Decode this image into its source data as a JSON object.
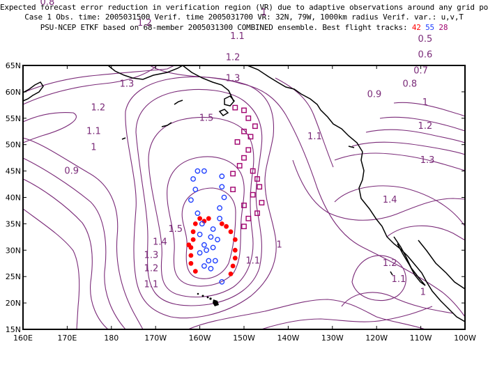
{
  "title": {
    "line1": "Expected forecast error reduction in verification region (VR) due to adaptive observations around any grid point.",
    "line2": "Case 1  Obs. time: 2005031500  Verif. time 2005031700  VR: 32N, 79W, 1000km radius  Verif. var.: u,v,T",
    "line3_prefix": "PSU-NCEP ETKF based on 68-member 2005031300 COMBINED ensemble.  Best flight tracks:",
    "track_labels": [
      "42",
      "55",
      "28"
    ]
  },
  "axes": {
    "lat_labels": [
      "65N",
      "60N",
      "55N",
      "50N",
      "45N",
      "40N",
      "35N",
      "30N",
      "25N",
      "20N",
      "15N"
    ],
    "lon_labels": [
      "160E",
      "170E",
      "180",
      "170W",
      "160W",
      "150W",
      "140W",
      "130W",
      "120W",
      "110W",
      "100W"
    ]
  },
  "contour_labels": [
    {
      "text": "0.8",
      "lon": 165.5,
      "lat": 61.5
    },
    {
      "text": "1.1",
      "lon": 187.5,
      "lat": 63.0
    },
    {
      "text": "1.2",
      "lon": 187.5,
      "lat": 57.5
    },
    {
      "text": "1",
      "lon": 214.5,
      "lat": 59.5
    },
    {
      "text": "1.1",
      "lon": 208.5,
      "lat": 55.0
    },
    {
      "text": "1.2",
      "lon": 207.5,
      "lat": 51.0
    },
    {
      "text": "1.3",
      "lon": 207.5,
      "lat": 47.0
    },
    {
      "text": "1.3",
      "lon": 183.5,
      "lat": 46.0
    },
    {
      "text": "1.2",
      "lon": 177.0,
      "lat": 41.5
    },
    {
      "text": "1.1",
      "lon": 176.0,
      "lat": 37.0
    },
    {
      "text": "1",
      "lon": 176.0,
      "lat": 34.0
    },
    {
      "text": "0.9",
      "lon": 171.0,
      "lat": 29.5
    },
    {
      "text": "1.5",
      "lon": 201.5,
      "lat": 39.5
    },
    {
      "text": "0.5",
      "lon": 251.0,
      "lat": 54.5
    },
    {
      "text": "0.6",
      "lon": 251.0,
      "lat": 51.5
    },
    {
      "text": "0.7",
      "lon": 250.0,
      "lat": 48.5
    },
    {
      "text": "0.8",
      "lon": 247.5,
      "lat": 46.0
    },
    {
      "text": "0.9",
      "lon": 239.5,
      "lat": 44.0
    },
    {
      "text": "1",
      "lon": 251.0,
      "lat": 42.5
    },
    {
      "text": "1.2",
      "lon": 251.0,
      "lat": 38.0
    },
    {
      "text": "1.1",
      "lon": 226.0,
      "lat": 36.0
    },
    {
      "text": "1.3",
      "lon": 251.5,
      "lat": 31.5
    },
    {
      "text": "1.4",
      "lon": 243.0,
      "lat": 24.0
    },
    {
      "text": "1.5",
      "lon": 194.5,
      "lat": 18.5
    },
    {
      "text": "1.4",
      "lon": 191.0,
      "lat": 16.0
    },
    {
      "text": "1.3",
      "lon": 189.0,
      "lat": 13.5
    },
    {
      "text": "1.2",
      "lon": 189.0,
      "lat": 11.0
    },
    {
      "text": "1.1",
      "lon": 189.0,
      "lat": 8.0
    },
    {
      "text": "1.1",
      "lon": 212.0,
      "lat": 12.5
    },
    {
      "text": "1",
      "lon": 218.0,
      "lat": 15.5
    },
    {
      "text": "1.2",
      "lon": 243.0,
      "lat": 12.0
    },
    {
      "text": "1.1",
      "lon": 245.0,
      "lat": 9.0
    },
    {
      "text": "1",
      "lon": 250.5,
      "lat": 6.5
    }
  ],
  "markers": {
    "red_filled_circles": [
      [
        -161.5,
        32
      ],
      [
        -162,
        30.5
      ],
      [
        -162,
        29
      ],
      [
        -162,
        27.5
      ],
      [
        -161,
        26
      ],
      [
        -161,
        35
      ],
      [
        -160,
        36
      ],
      [
        -158,
        36
      ],
      [
        -155,
        35
      ],
      [
        -153,
        33.5
      ],
      [
        -152,
        32
      ],
      [
        -152,
        30
      ],
      [
        -152,
        28.5
      ],
      [
        -152.5,
        27
      ],
      [
        -153,
        25.5
      ],
      [
        -154,
        34.5
      ],
      [
        -159,
        35.5
      ],
      [
        -162.5,
        31
      ],
      [
        -161.5,
        33.5
      ]
    ],
    "blue_open_circles": [
      [
        -160.5,
        45
      ],
      [
        -159,
        45
      ],
      [
        -161.5,
        43.5
      ],
      [
        -161,
        41.5
      ],
      [
        -162,
        39.5
      ],
      [
        -160.5,
        37
      ],
      [
        -159.5,
        35
      ],
      [
        -160,
        33
      ],
      [
        -159,
        31
      ],
      [
        -160,
        29.5
      ],
      [
        -158,
        28
      ],
      [
        -157.5,
        26.5
      ],
      [
        -159,
        27
      ],
      [
        -158.5,
        30
      ],
      [
        -156,
        32
      ],
      [
        -157,
        34
      ],
      [
        -155.5,
        36
      ],
      [
        -155.5,
        38
      ],
      [
        -154.5,
        40
      ],
      [
        -155,
        42
      ],
      [
        -155,
        44
      ],
      [
        -155,
        24
      ],
      [
        -157.5,
        32.5
      ],
      [
        -157,
        30.5
      ],
      [
        -156.5,
        28
      ]
    ],
    "purple_open_squares": [
      [
        -152,
        57
      ],
      [
        -150,
        56.5
      ],
      [
        -149,
        55
      ],
      [
        -147.5,
        53.5
      ],
      [
        -150,
        52.5
      ],
      [
        -148.5,
        51.5
      ],
      [
        -151.5,
        50.5
      ],
      [
        -149,
        49
      ],
      [
        -150,
        47.5
      ],
      [
        -151,
        46
      ],
      [
        -148,
        45
      ],
      [
        -147,
        43.5
      ],
      [
        -146.5,
        42
      ],
      [
        -148,
        40.5
      ],
      [
        -146,
        39
      ],
      [
        -150,
        38.5
      ],
      [
        -147,
        37
      ],
      [
        -149,
        36
      ],
      [
        -150,
        34.5
      ],
      [
        -152.5,
        44.5
      ],
      [
        -152.5,
        41.5
      ]
    ]
  }
}
